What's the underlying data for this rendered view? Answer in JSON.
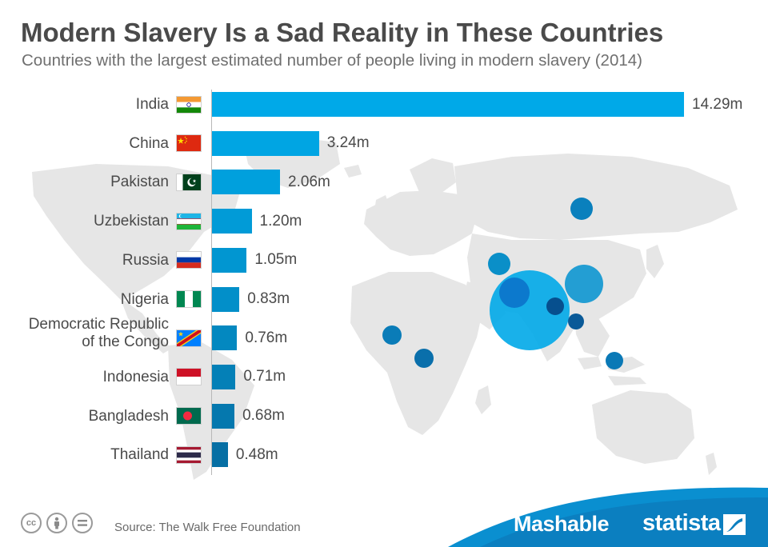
{
  "header": {
    "title": "Modern Slavery Is a Sad Reality in These Countries",
    "subtitle": "Countries with the largest estimated number of people living in modern slavery (2014)"
  },
  "chart_data": {
    "type": "bar",
    "orientation": "horizontal",
    "unit": "m",
    "categories": [
      "India",
      "China",
      "Pakistan",
      "Uzbekistan",
      "Russia",
      "Nigeria",
      "Democratic Republic of the Congo",
      "Indonesia",
      "Bangladesh",
      "Thailand"
    ],
    "category_lines": [
      [
        "India"
      ],
      [
        "China"
      ],
      [
        "Pakistan"
      ],
      [
        "Uzbekistan"
      ],
      [
        "Russia"
      ],
      [
        "Nigeria"
      ],
      [
        "Democratic Republic",
        "of the Congo"
      ],
      [
        "Indonesia"
      ],
      [
        "Bangladesh"
      ],
      [
        "Thailand"
      ]
    ],
    "values": [
      14.29,
      3.24,
      2.06,
      1.2,
      1.05,
      0.83,
      0.76,
      0.71,
      0.68,
      0.48
    ],
    "value_labels": [
      "14.29m",
      "3.24m",
      "2.06m",
      "1.20m",
      "1.05m",
      "0.83m",
      "0.76m",
      "0.71m",
      "0.68m",
      "0.48m"
    ],
    "bar_colors": [
      "#00a9e8",
      "#00a5e3",
      "#00a0dd",
      "#019bd7",
      "#0196d1",
      "#028fc9",
      "#0388c0",
      "#0480b7",
      "#0578ae",
      "#066fa4"
    ],
    "xlim": [
      0,
      14.29
    ],
    "grid": false
  },
  "flags": [
    "flag-india-icon",
    "flag-china-icon",
    "flag-pakistan-icon",
    "flag-uzbekistan-icon",
    "flag-russia-icon",
    "flag-nigeria-icon",
    "flag-drc-icon",
    "flag-indonesia-icon",
    "flag-bangladesh-icon",
    "flag-thailand-icon"
  ],
  "footer": {
    "license_icons": [
      "cc-icon",
      "attribution-icon",
      "no-derivatives-icon"
    ],
    "source": "Source: The Walk Free Foundation",
    "brand_left": "Mashable",
    "brand_right": "statista"
  },
  "colors": {
    "map_land": "#e6e6e6",
    "bubble": "#0089c4",
    "brand_wave": "#0a8fd0"
  }
}
